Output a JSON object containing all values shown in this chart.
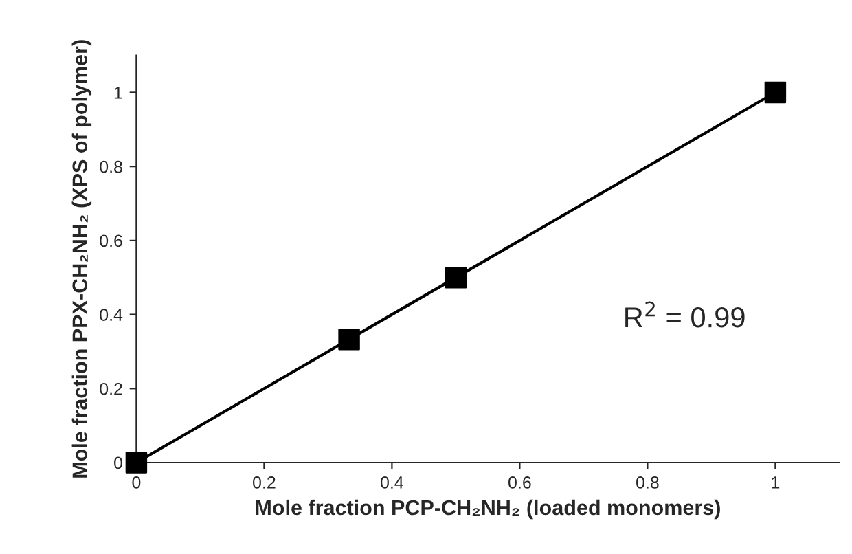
{
  "chart_data": {
    "type": "scatter",
    "xlabel": "Mole fraction PCP-CH₂NH₂ (loaded monomers)",
    "ylabel": "Mole fraction PPX-CH₂NH₂ (XPS of polymer)",
    "annotations": [
      "R$^{2}$ = 0.99"
    ],
    "series": [
      {
        "type": "line",
        "color": "#000000",
        "x": [
          0,
          1
        ],
        "values": [
          0,
          1
        ],
        "marker": "none"
      },
      {
        "color": "#000000",
        "x": [
          0,
          0.333,
          0.5,
          1
        ],
        "values": [
          0,
          0.333,
          0.5,
          1
        ],
        "marker": "square"
      }
    ],
    "xlim": [
      0,
      1.1
    ],
    "ylim": [
      0,
      1.1
    ],
    "xticks": [
      0,
      0.2,
      0.4,
      0.6,
      0.8,
      1
    ],
    "yticks": [
      0,
      0.2,
      0.4,
      0.6,
      0.8,
      1
    ],
    "grid": false,
    "legend": false
  }
}
